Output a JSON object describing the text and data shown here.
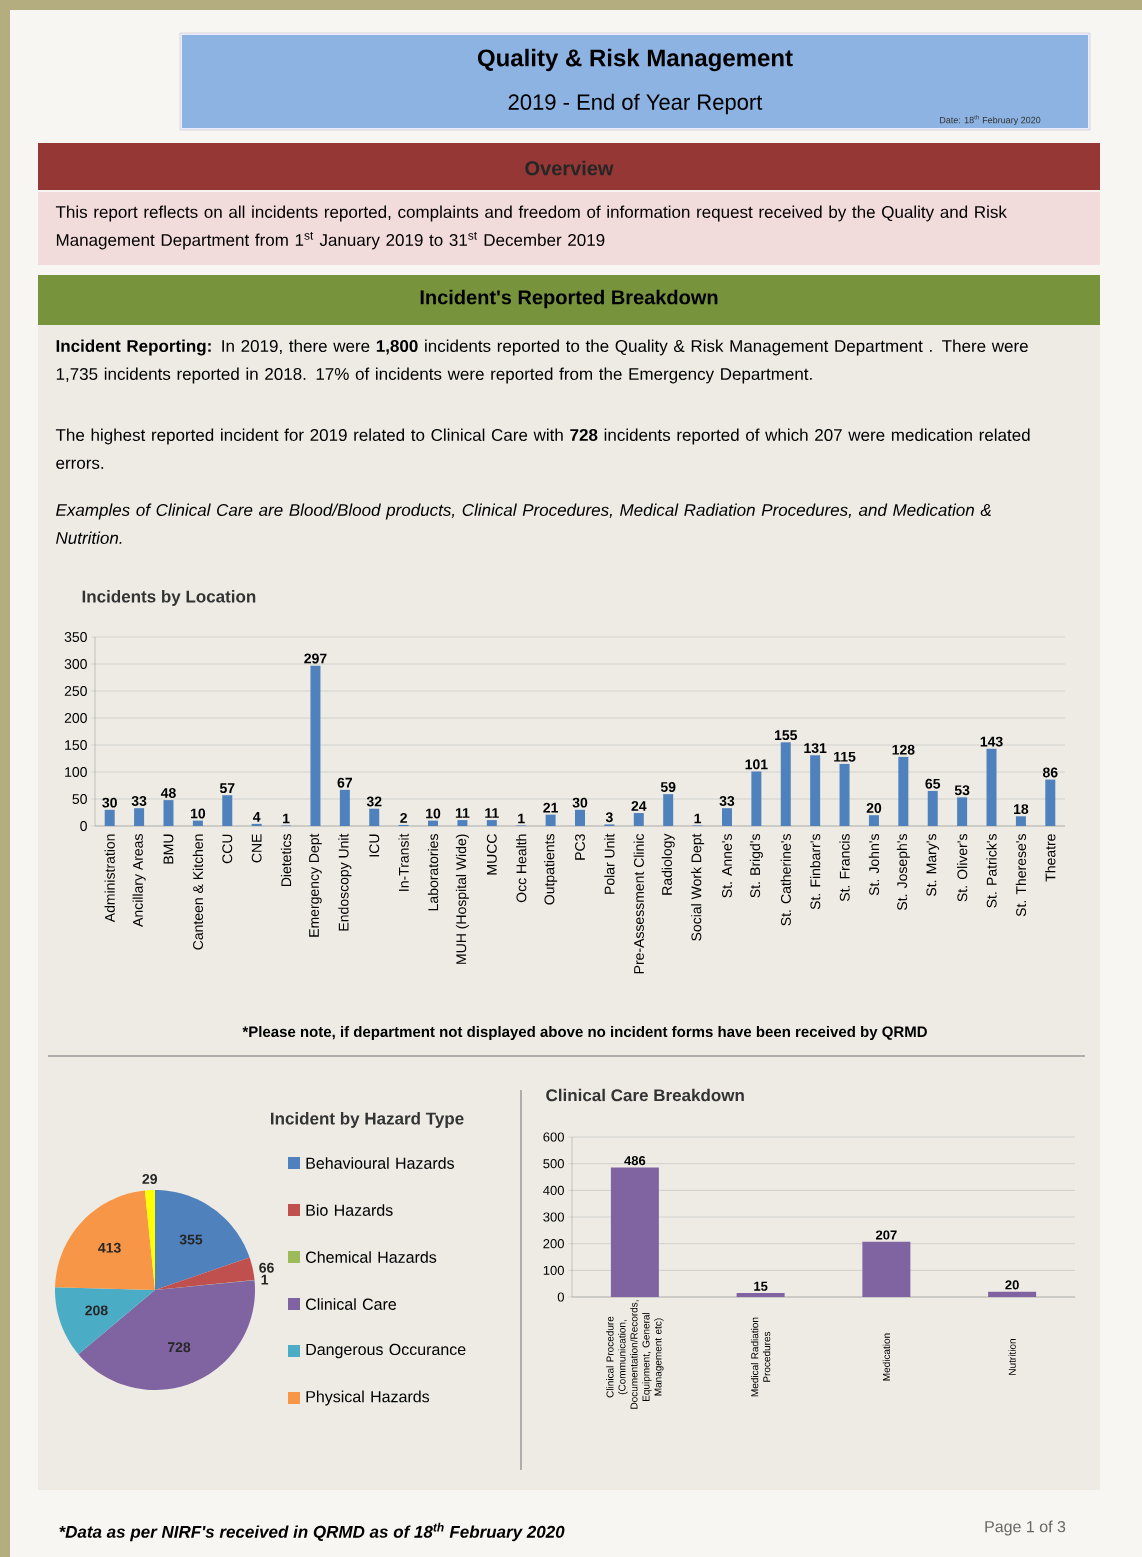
{
  "chart_data": [
    {
      "type": "other",
      "title": "Quality & Risk Management",
      "subtitle": "2019 - End of Year Report",
      "annotations": [
        "Date: 18$^{th}$ February 2020",
        "Overview",
        "This report reflects on all incidents reported, complaints and freedom of information request received by the Quality and Risk Management Department from 1$^{st}$ January 2019 to 31$^{st}$ December 2019",
        "Incident's Reported Breakdown",
        "**Incident Reporting:** In 2019, there were **1,800** incidents reported to the Quality & Risk Management Department . There were 1,735 incidents reported in 2018. 17% of incidents were reported from the Emergency Department.",
        "The highest reported incident for 2019 related to Clinical Care with **728** incidents reported of which 207 were medication related errors.",
        "Examples of Clinical Care are Blood/Blood products, Clinical Procedures, Medical Radiation Procedures, and Medication & Nutrition.",
        "*Data as per NIRF's received in QRMD as of 18$^{th}$ February 2020",
        "Page 1 of 3"
      ]
    },
    {
      "type": "bar",
      "title": "Incidents by Location",
      "categories": [
        "Administration",
        "Ancillary Areas",
        "BMU",
        "Canteen & Kitchen",
        "CCU",
        "CNE",
        "Dietetics",
        "Emergency Dept",
        "Endoscopy Unit",
        "ICU",
        "In-Transit",
        "Laboratories",
        "MUH (Hospital Wide)",
        "MUCC",
        "Occ Health",
        "Outpatients",
        "PC3",
        "Polar Unit",
        "Pre-Assessment Clinic",
        "Radiology",
        "Social Work Dept",
        "St. Anne's",
        "St. Brigd's",
        "St. Catherine's",
        "St. Finbarr's",
        "St. Francis",
        "St. John's",
        "St. Joseph's",
        "St. Mary's",
        "St. Oliver's",
        "St. Patrick's",
        "St. Therese's",
        "Theatre"
      ],
      "values": [
        30,
        33,
        48,
        10,
        57,
        4,
        1,
        297,
        67,
        32,
        2,
        10,
        11,
        11,
        1,
        21,
        30,
        3,
        24,
        59,
        1,
        33,
        101,
        155,
        131,
        115,
        20,
        128,
        65,
        53,
        143,
        18,
        86
      ],
      "color": "#4f81bd",
      "ylim": [
        0,
        350
      ],
      "yticks": [
        0,
        50,
        100,
        150,
        200,
        250,
        300,
        350
      ],
      "grid": "y",
      "data_labels": true,
      "annotations": [
        "*Please note, if department not displayed above no incident forms have been received by QRMD"
      ]
    },
    {
      "type": "pie",
      "title": "Incident by Hazard Type",
      "categories": [
        "Behavioural Hazards",
        "Bio Hazards",
        "Chemical Hazards",
        "Clinical Care",
        "Dangerous Occurance",
        "Physical Hazards",
        null
      ],
      "values": [
        355,
        66,
        1,
        728,
        208,
        413,
        29
      ],
      "colors": [
        "#4f81bd",
        "#c0504d",
        "#9bbb59",
        "#8064a2",
        "#4bacc6",
        "#f79646",
        "#ffff00"
      ],
      "data_labels": true,
      "legend": "right"
    },
    {
      "type": "bar",
      "title": "Clinical Care Breakdown",
      "categories": [
        "Clinical Procedure (Communication, Documentation/Records, Equipment, General Management etc)",
        "Medical Radiation Procedures",
        "Medication",
        "Nutrition"
      ],
      "values": [
        486,
        15,
        207,
        20
      ],
      "color": "#8064a2",
      "ylim": [
        0,
        600
      ],
      "yticks": [
        0,
        100,
        200,
        300,
        400,
        500,
        600
      ],
      "grid": "y",
      "data_labels": true
    }
  ]
}
